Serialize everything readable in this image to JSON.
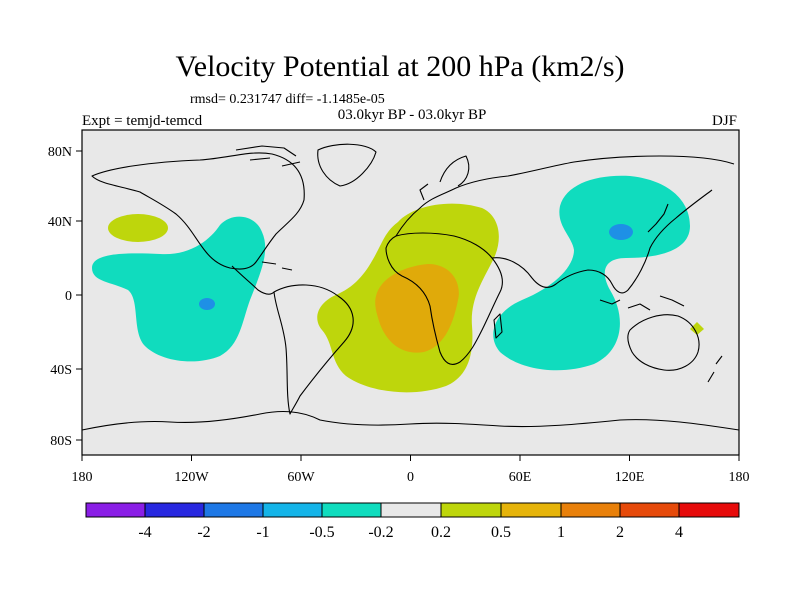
{
  "title": "Velocity Potential at 200 hPa (km2/s)",
  "stats": "rmsd= 0.231747 diff= -1.1485e-05",
  "period": "03.0kyr BP - 03.0kyr BP",
  "experiment": "Expt = temjd-temcd",
  "season": "DJF",
  "axes": {
    "lon_ticks": [
      "180",
      "120W",
      "60W",
      "0",
      "60E",
      "120E",
      "180"
    ],
    "lat_ticks": [
      "80N",
      "40N",
      "0",
      "40S",
      "80S"
    ]
  },
  "colorbar": {
    "labels": [
      "-4",
      "-2",
      "-1",
      "-0.5",
      "-0.2",
      "0.2",
      "0.5",
      "1",
      "2",
      "4"
    ],
    "colors": [
      "#8a1ee6",
      "#2828e0",
      "#1e78e6",
      "#14b4e8",
      "#10dcbe",
      "#e8e8e8",
      "#bed60c",
      "#e6b40a",
      "#e8800a",
      "#e64a0a",
      "#e60a0a"
    ]
  },
  "colors": {
    "land_bg": "#e8e8e8",
    "neg_weak": "#10dcbe",
    "neg_mid": "#1e90e6",
    "pos_weak": "#bed60c",
    "pos_mid": "#e0aa0a"
  }
}
